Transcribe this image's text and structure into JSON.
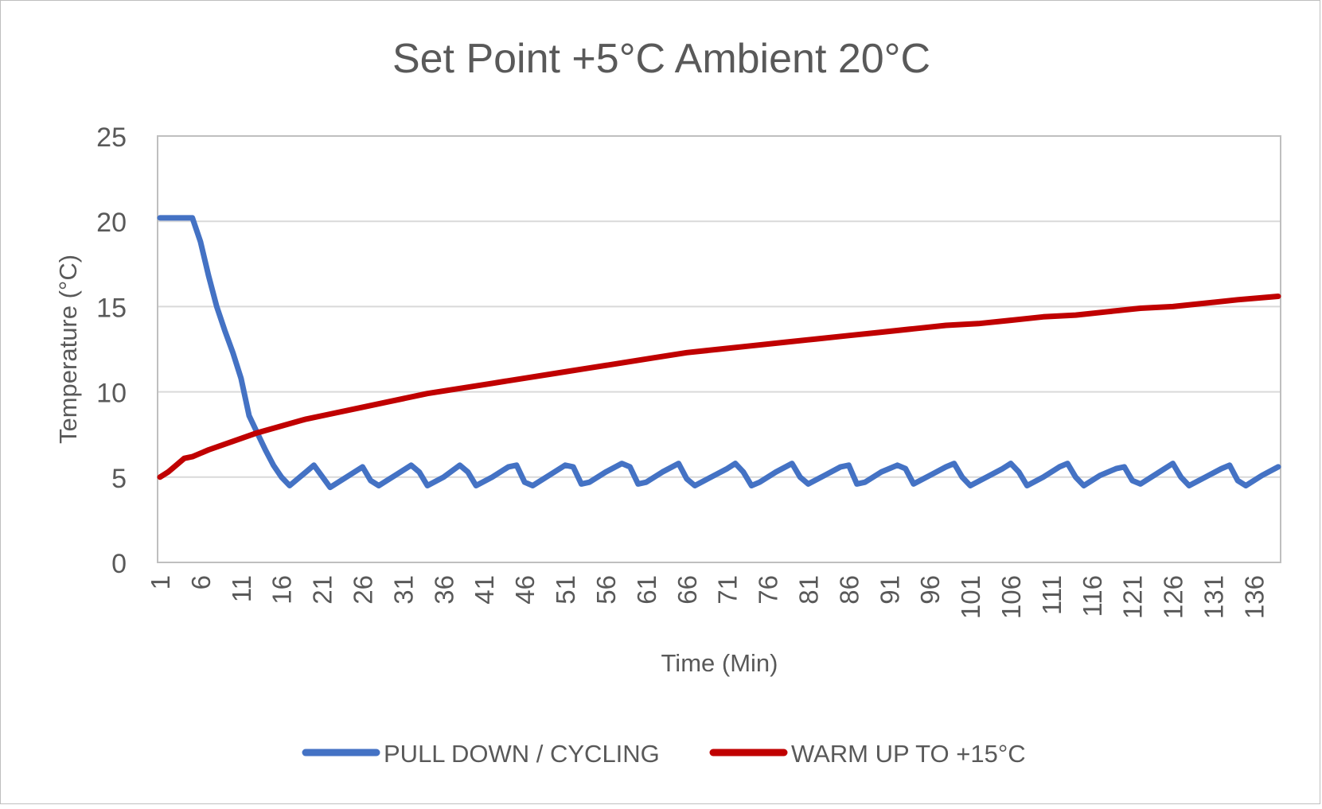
{
  "chart_data": {
    "type": "line",
    "title": "Set Point +5°C Ambient 20°C",
    "xlabel": "Time (Min)",
    "ylabel": "Temperature (°C)",
    "ylim": [
      0,
      25
    ],
    "yticks": [
      0,
      5,
      10,
      15,
      20,
      25
    ],
    "xlim": [
      1,
      139
    ],
    "xticks": [
      1,
      6,
      11,
      16,
      21,
      26,
      31,
      36,
      41,
      46,
      51,
      56,
      61,
      66,
      71,
      76,
      81,
      86,
      91,
      96,
      101,
      106,
      111,
      116,
      121,
      126,
      131,
      136
    ],
    "grid": true,
    "legend": "bottom",
    "series": [
      {
        "name": "PULL DOWN / CYCLING",
        "color": "#4472c4",
        "points": [
          [
            1,
            20.2
          ],
          [
            5,
            20.2
          ],
          [
            6,
            18.8
          ],
          [
            7,
            16.8
          ],
          [
            8,
            15.0
          ],
          [
            9,
            13.6
          ],
          [
            10,
            12.3
          ],
          [
            11,
            10.8
          ],
          [
            12,
            8.6
          ],
          [
            13,
            7.6
          ],
          [
            14,
            6.6
          ],
          [
            15,
            5.7
          ],
          [
            16,
            5.0
          ],
          [
            17,
            4.5
          ],
          [
            19,
            5.3
          ],
          [
            20,
            5.7
          ],
          [
            22,
            4.4
          ],
          [
            24,
            5.0
          ],
          [
            26,
            5.6
          ],
          [
            27,
            4.8
          ],
          [
            28,
            4.5
          ],
          [
            30,
            5.1
          ],
          [
            32,
            5.7
          ],
          [
            33,
            5.3
          ],
          [
            34,
            4.5
          ],
          [
            36,
            5.0
          ],
          [
            38,
            5.7
          ],
          [
            39,
            5.3
          ],
          [
            40,
            4.5
          ],
          [
            42,
            5.0
          ],
          [
            44,
            5.6
          ],
          [
            45,
            5.7
          ],
          [
            46,
            4.7
          ],
          [
            47,
            4.5
          ],
          [
            49,
            5.1
          ],
          [
            51,
            5.7
          ],
          [
            52,
            5.6
          ],
          [
            53,
            4.6
          ],
          [
            54,
            4.7
          ],
          [
            56,
            5.3
          ],
          [
            58,
            5.8
          ],
          [
            59,
            5.6
          ],
          [
            60,
            4.6
          ],
          [
            61,
            4.7
          ],
          [
            63,
            5.3
          ],
          [
            65,
            5.8
          ],
          [
            66,
            4.9
          ],
          [
            67,
            4.5
          ],
          [
            69,
            5.0
          ],
          [
            71,
            5.5
          ],
          [
            72,
            5.8
          ],
          [
            73,
            5.3
          ],
          [
            74,
            4.5
          ],
          [
            75,
            4.7
          ],
          [
            77,
            5.3
          ],
          [
            79,
            5.8
          ],
          [
            80,
            5.0
          ],
          [
            81,
            4.6
          ],
          [
            83,
            5.1
          ],
          [
            85,
            5.6
          ],
          [
            86,
            5.7
          ],
          [
            87,
            4.6
          ],
          [
            88,
            4.7
          ],
          [
            90,
            5.3
          ],
          [
            92,
            5.7
          ],
          [
            93,
            5.5
          ],
          [
            94,
            4.6
          ],
          [
            96,
            5.1
          ],
          [
            98,
            5.6
          ],
          [
            99,
            5.8
          ],
          [
            100,
            5.0
          ],
          [
            101,
            4.5
          ],
          [
            103,
            5.0
          ],
          [
            105,
            5.5
          ],
          [
            106,
            5.8
          ],
          [
            107,
            5.3
          ],
          [
            108,
            4.5
          ],
          [
            110,
            5.0
          ],
          [
            112,
            5.6
          ],
          [
            113,
            5.8
          ],
          [
            114,
            5.0
          ],
          [
            115,
            4.5
          ],
          [
            117,
            5.1
          ],
          [
            119,
            5.5
          ],
          [
            120,
            5.6
          ],
          [
            121,
            4.8
          ],
          [
            122,
            4.6
          ],
          [
            124,
            5.2
          ],
          [
            126,
            5.8
          ],
          [
            127,
            5.0
          ],
          [
            128,
            4.5
          ],
          [
            130,
            5.0
          ],
          [
            132,
            5.5
          ],
          [
            133,
            5.7
          ],
          [
            134,
            4.8
          ],
          [
            135,
            4.5
          ],
          [
            137,
            5.1
          ],
          [
            139,
            5.6
          ]
        ]
      },
      {
        "name": "WARM UP TO +15°C",
        "color": "#c00000",
        "points": [
          [
            1,
            5.0
          ],
          [
            2,
            5.3
          ],
          [
            3,
            5.7
          ],
          [
            4,
            6.1
          ],
          [
            5,
            6.2
          ],
          [
            7,
            6.6
          ],
          [
            10,
            7.1
          ],
          [
            13,
            7.6
          ],
          [
            16,
            8.0
          ],
          [
            19,
            8.4
          ],
          [
            22,
            8.7
          ],
          [
            26,
            9.1
          ],
          [
            30,
            9.5
          ],
          [
            34,
            9.9
          ],
          [
            38,
            10.2
          ],
          [
            42,
            10.5
          ],
          [
            46,
            10.8
          ],
          [
            50,
            11.1
          ],
          [
            54,
            11.4
          ],
          [
            58,
            11.7
          ],
          [
            62,
            12.0
          ],
          [
            66,
            12.3
          ],
          [
            70,
            12.5
          ],
          [
            74,
            12.7
          ],
          [
            78,
            12.9
          ],
          [
            82,
            13.1
          ],
          [
            86,
            13.3
          ],
          [
            90,
            13.5
          ],
          [
            94,
            13.7
          ],
          [
            98,
            13.9
          ],
          [
            102,
            14.0
          ],
          [
            106,
            14.2
          ],
          [
            110,
            14.4
          ],
          [
            114,
            14.5
          ],
          [
            118,
            14.7
          ],
          [
            122,
            14.9
          ],
          [
            126,
            15.0
          ],
          [
            130,
            15.2
          ],
          [
            134,
            15.4
          ],
          [
            139,
            15.6
          ]
        ]
      }
    ]
  }
}
